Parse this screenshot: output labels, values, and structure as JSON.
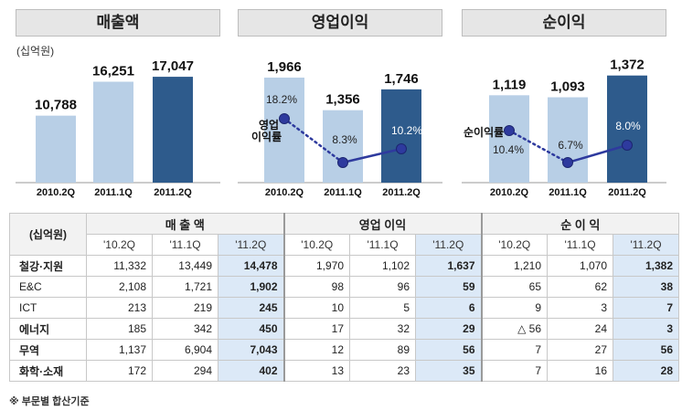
{
  "unit_label": "(십억원)",
  "footnote": "※ 부문별 합산기준",
  "chart_data": [
    {
      "type": "bar",
      "title": "매출액",
      "categories": [
        "2010.2Q",
        "2011.1Q",
        "2011.2Q"
      ],
      "values": [
        10788,
        16251,
        17047
      ],
      "value_labels": [
        "10,788",
        "16,251",
        "17,047"
      ],
      "colors": [
        "#b8cfe6",
        "#b8cfe6",
        "#2e5b8c"
      ]
    },
    {
      "type": "bar",
      "title": "영업이익",
      "categories": [
        "2010.2Q",
        "2011.1Q",
        "2011.2Q"
      ],
      "values": [
        1966,
        1356,
        1746
      ],
      "value_labels": [
        "1,966",
        "1,356",
        "1,746"
      ],
      "colors": [
        "#b8cfe6",
        "#b8cfe6",
        "#2e5b8c"
      ],
      "line_label": [
        "영업",
        "이익률"
      ],
      "line_values": [
        18.2,
        8.3,
        10.2
      ],
      "line_labels": [
        "18.2%",
        "8.3%",
        "10.2%"
      ]
    },
    {
      "type": "bar",
      "title": "순이익",
      "categories": [
        "2010.2Q",
        "2011.1Q",
        "2011.2Q"
      ],
      "values": [
        1119,
        1093,
        1372
      ],
      "value_labels": [
        "1,119",
        "1,093",
        "1,372"
      ],
      "colors": [
        "#b8cfe6",
        "#b8cfe6",
        "#2e5b8c"
      ],
      "line_label": [
        "순이익률"
      ],
      "line_values": [
        10.4,
        6.7,
        8.0
      ],
      "line_labels": [
        "10.4%",
        "6.7%",
        "8.0%"
      ]
    },
    {
      "type": "table",
      "unit": "(십억원)",
      "groups": [
        "매 출 액",
        "영업 이익",
        "순 이 익"
      ],
      "periods": [
        "'10.2Q",
        "'11.1Q",
        "'11.2Q"
      ],
      "rows": [
        {
          "label": "철강·지원",
          "bold": true,
          "values": [
            "11,332",
            "13,449",
            "14,478",
            "1,970",
            "1,102",
            "1,637",
            "1,210",
            "1,070",
            "1,382"
          ]
        },
        {
          "label": "E&C",
          "bold": false,
          "values": [
            "2,108",
            "1,721",
            "1,902",
            "98",
            "96",
            "59",
            "65",
            "62",
            "38"
          ]
        },
        {
          "label": "ICT",
          "bold": false,
          "values": [
            "213",
            "219",
            "245",
            "10",
            "5",
            "6",
            "9",
            "3",
            "7"
          ]
        },
        {
          "label": "에너지",
          "bold": true,
          "values": [
            "185",
            "342",
            "450",
            "17",
            "32",
            "29",
            "△ 56",
            "24",
            "3"
          ]
        },
        {
          "label": "무역",
          "bold": true,
          "values": [
            "1,137",
            "6,904",
            "7,043",
            "12",
            "89",
            "56",
            "7",
            "27",
            "56"
          ]
        },
        {
          "label": "화학·소재",
          "bold": true,
          "values": [
            "172",
            "294",
            "402",
            "13",
            "23",
            "35",
            "7",
            "16",
            "28"
          ]
        }
      ]
    }
  ]
}
